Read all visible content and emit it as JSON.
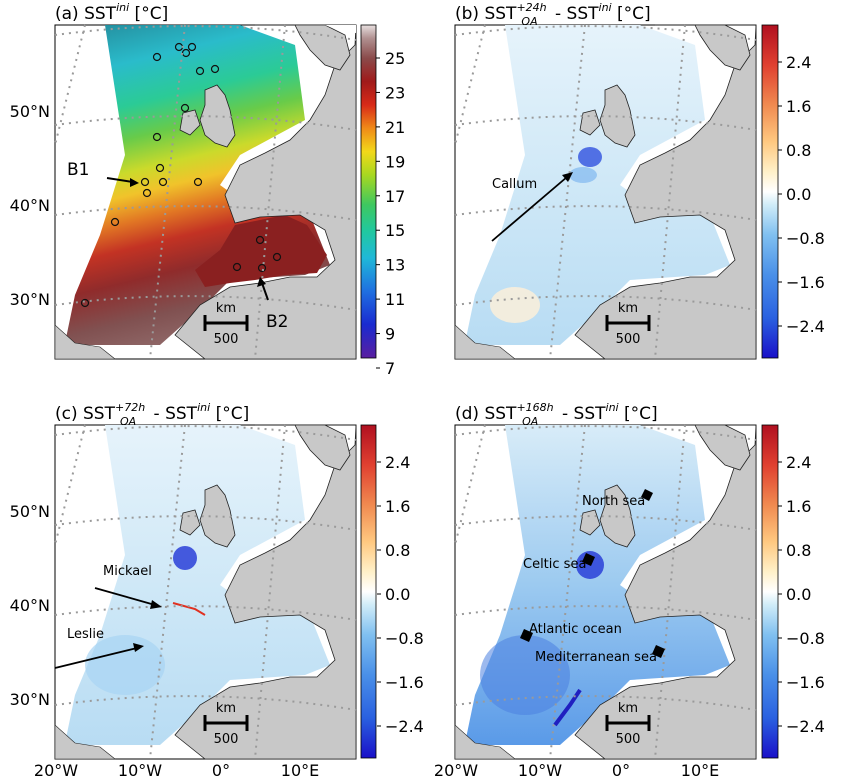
{
  "panels": [
    {
      "id": "a",
      "title_prefix": "(a) SST",
      "title_sup": "ini",
      "title_unit": " [°C]",
      "colormap": "sst",
      "colorbar_ticks": [
        "25",
        "23",
        "21",
        "19",
        "17",
        "15",
        "13",
        "11",
        "9",
        "7"
      ],
      "annotations": [
        {
          "text": "B1"
        },
        {
          "text": "B2"
        }
      ]
    },
    {
      "id": "b",
      "title_prefix": "(b) SST",
      "title_sup": "+24h",
      "title_sub": "OA",
      "title_mid": " - SST",
      "title_sup2": "ini",
      "title_unit": " [°C]",
      "colormap": "anomaly",
      "colorbar_ticks": [
        "2.4",
        "1.6",
        "0.8",
        "0.0",
        "−0.8",
        "−1.6",
        "−2.4"
      ],
      "annotations": [
        {
          "text": "Callum"
        }
      ]
    },
    {
      "id": "c",
      "title_prefix": "(c) SST",
      "title_sup": "+72h",
      "title_sub": "OA",
      "title_mid": " - SST",
      "title_sup2": "ini",
      "title_unit": " [°C]",
      "colormap": "anomaly",
      "colorbar_ticks": [
        "2.4",
        "1.6",
        "0.8",
        "0.0",
        "−0.8",
        "−1.6",
        "−2.4"
      ],
      "annotations": [
        {
          "text": "Mickael"
        },
        {
          "text": "Leslie"
        }
      ]
    },
    {
      "id": "d",
      "title_prefix": "(d) SST",
      "title_sup": "+168h",
      "title_sub": "OA",
      "title_mid": " - SST",
      "title_sup2": "ini",
      "title_unit": " [°C]",
      "colormap": "anomaly",
      "colorbar_ticks": [
        "2.4",
        "1.6",
        "0.8",
        "0.0",
        "−0.8",
        "−1.6",
        "−2.4"
      ],
      "annotations": [
        {
          "text": "North sea"
        },
        {
          "text": "Celtic sea"
        },
        {
          "text": "Atlantic ocean"
        },
        {
          "text": "Mediterranean sea"
        }
      ]
    }
  ],
  "lat_labels": [
    "50°N",
    "40°N",
    "30°N"
  ],
  "lon_labels": [
    "20°W",
    "10°W",
    "0°",
    "10°E"
  ],
  "scale_bar": {
    "unit": "km",
    "value": "500"
  },
  "colors": {
    "land": "#c8c8c8",
    "gridline": "#9a9a9a",
    "sst_stops": [
      "#5a1fa0",
      "#1a2ad0",
      "#1f6fe0",
      "#1fb8d8",
      "#20c8a0",
      "#3ec860",
      "#a8d820",
      "#f2d81a",
      "#f08a18",
      "#d82a18",
      "#a01a1a",
      "#8a4a4a",
      "#a08080",
      "#e0d8d8"
    ],
    "anomaly_stops": [
      "#1a10c8",
      "#2a60e0",
      "#4a90e8",
      "#80c0f0",
      "#c8e8f8",
      "#ffffff",
      "#fff0c8",
      "#ffc880",
      "#f08a50",
      "#e04030",
      "#b01020"
    ]
  }
}
